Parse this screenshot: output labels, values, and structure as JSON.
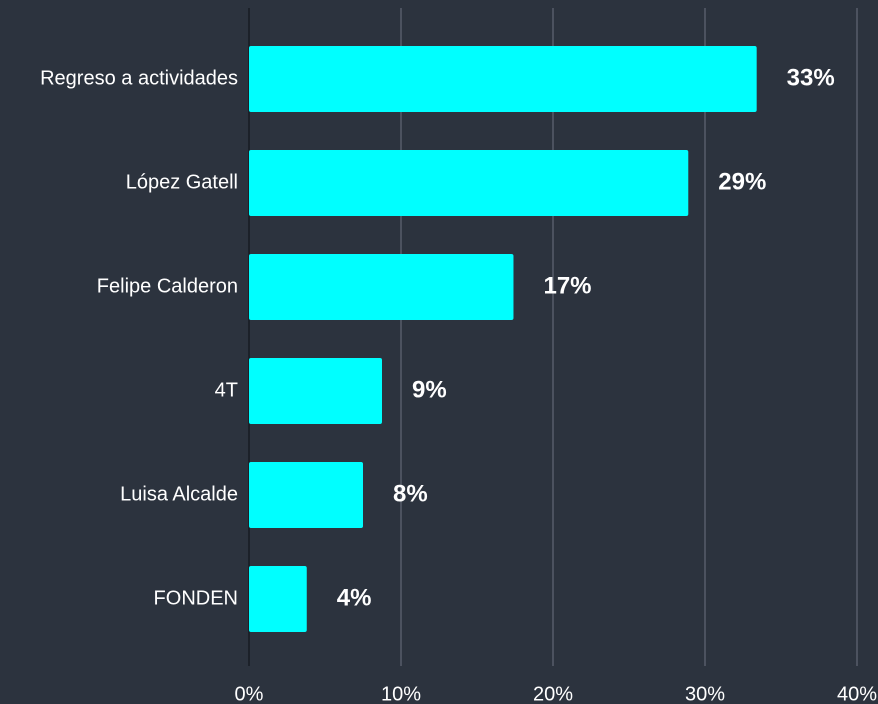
{
  "chart_data": {
    "type": "bar",
    "orientation": "horizontal",
    "categories": [
      "Regreso a actividades",
      "López Gatell",
      "Felipe Calderon",
      "4T",
      "Luisa Alcalde",
      "FONDEN"
    ],
    "values": [
      33.4,
      28.9,
      17.4,
      8.75,
      7.5,
      3.8
    ],
    "value_labels": [
      "33%",
      "29%",
      "17%",
      "9%",
      "8%",
      "4%"
    ],
    "color": "#00ffff",
    "xlim": [
      0,
      40
    ],
    "xticks": [
      {
        "value": 0,
        "label": "0%"
      },
      {
        "value": 10,
        "label": "10%"
      },
      {
        "value": 20,
        "label": "20%"
      },
      {
        "value": 30,
        "label": "30%"
      },
      {
        "value": 40,
        "label": "40%"
      }
    ],
    "grid": true
  }
}
